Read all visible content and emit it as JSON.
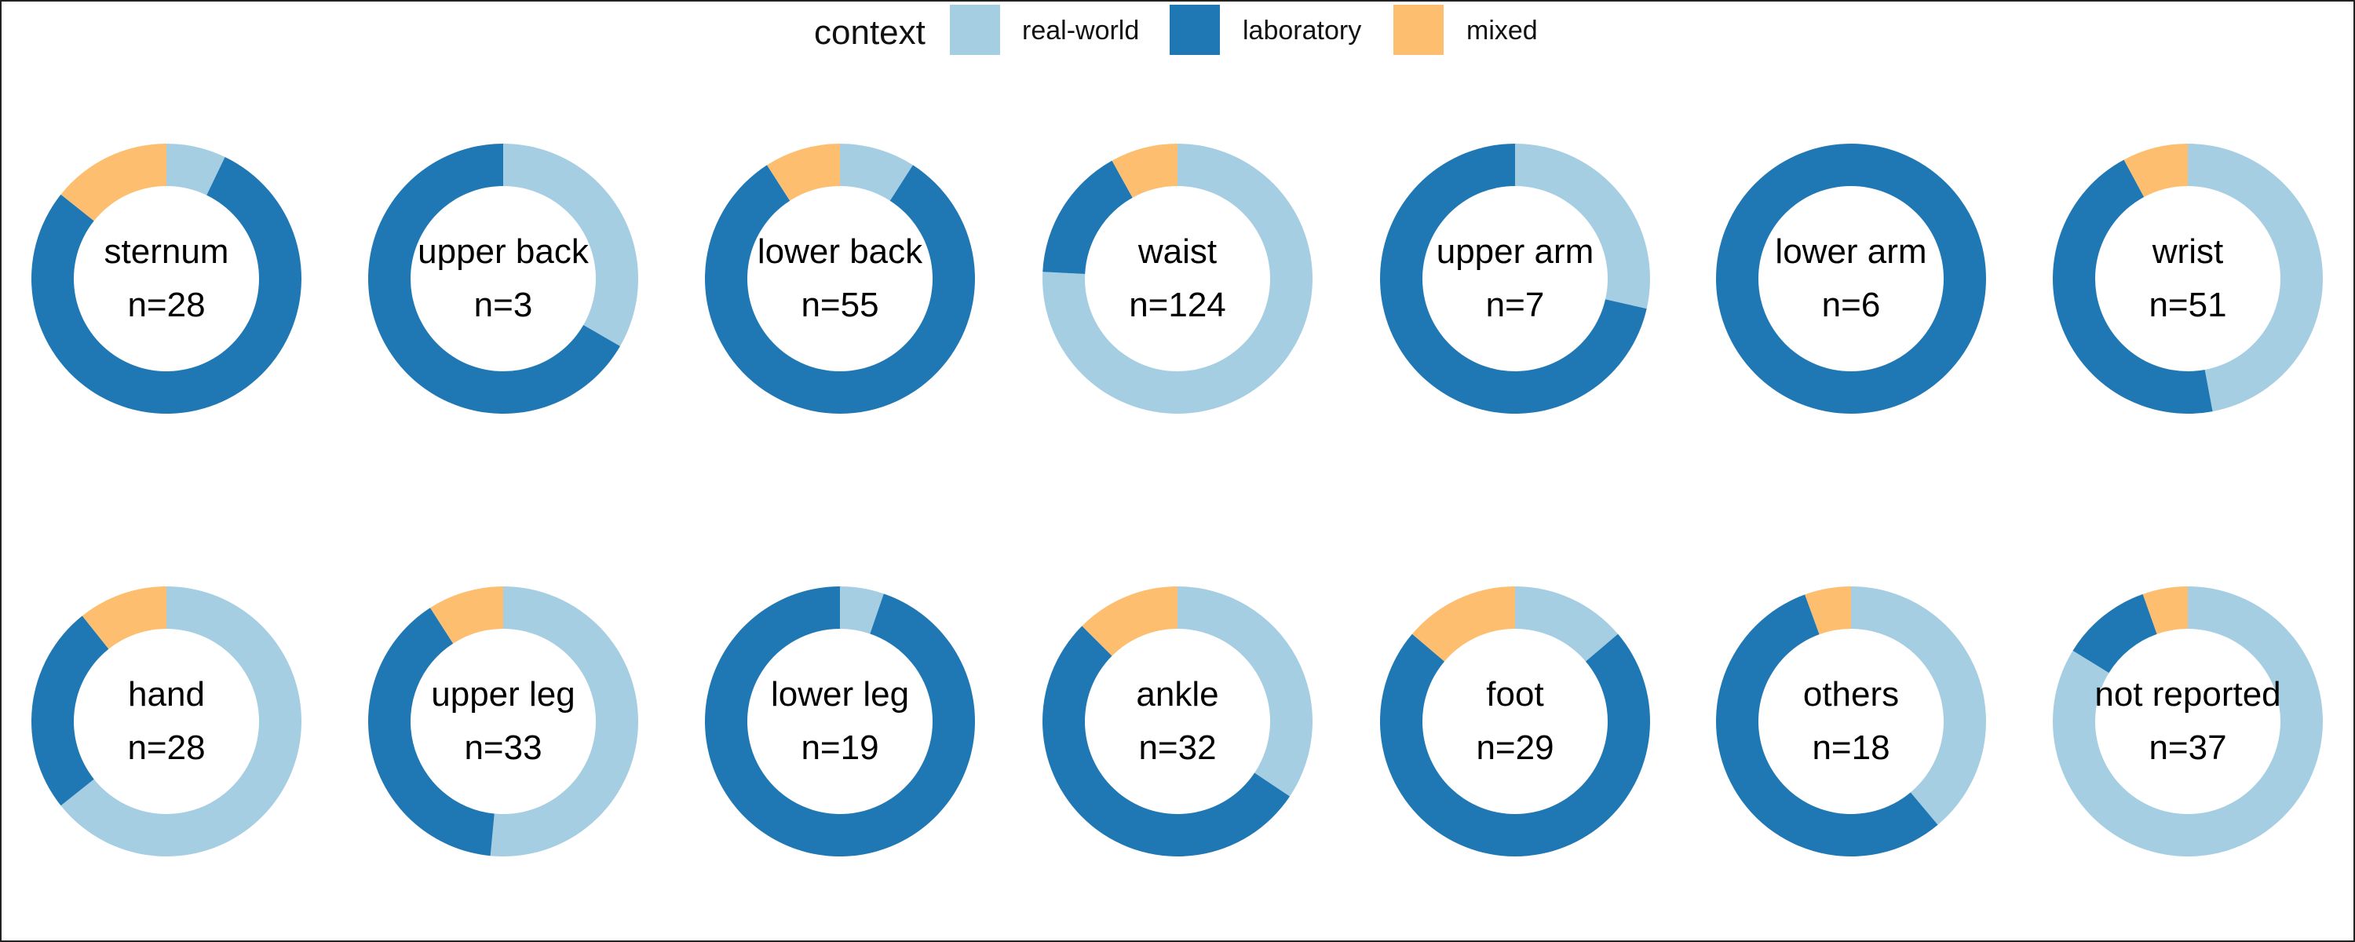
{
  "chart_data": {
    "type": "pie",
    "variant": "donut",
    "title": "",
    "legend": {
      "title": "context",
      "placement": "top",
      "entries": [
        {
          "name": "real-world",
          "color": "#a6cee3"
        },
        {
          "name": "laboratory",
          "color": "#1f78b4"
        },
        {
          "name": "mixed",
          "color": "#fdbf6f"
        }
      ]
    },
    "series_order": [
      "real-world",
      "laboratory",
      "mixed"
    ],
    "panels": [
      {
        "label": "sternum",
        "n_label": "n=28",
        "values": {
          "real-world": 2,
          "laboratory": 22,
          "mixed": 4
        }
      },
      {
        "label": "upper back",
        "n_label": "n=3",
        "values": {
          "real-world": 1,
          "laboratory": 2,
          "mixed": 0
        }
      },
      {
        "label": "lower back",
        "n_label": "n=55",
        "values": {
          "real-world": 5,
          "laboratory": 45,
          "mixed": 5
        }
      },
      {
        "label": "waist",
        "n_label": "n=124",
        "values": {
          "real-world": 94,
          "laboratory": 20,
          "mixed": 10
        }
      },
      {
        "label": "upper arm",
        "n_label": "n=7",
        "values": {
          "real-world": 2,
          "laboratory": 5,
          "mixed": 0
        }
      },
      {
        "label": "lower arm",
        "n_label": "n=6",
        "values": {
          "real-world": 0,
          "laboratory": 6,
          "mixed": 0
        }
      },
      {
        "label": "wrist",
        "n_label": "n=51",
        "values": {
          "real-world": 24,
          "laboratory": 23,
          "mixed": 4
        }
      },
      {
        "label": "hand",
        "n_label": "n=28",
        "values": {
          "real-world": 18,
          "laboratory": 7,
          "mixed": 3
        }
      },
      {
        "label": "upper leg",
        "n_label": "n=33",
        "values": {
          "real-world": 17,
          "laboratory": 13,
          "mixed": 3
        }
      },
      {
        "label": "lower leg",
        "n_label": "n=19",
        "values": {
          "real-world": 1,
          "laboratory": 18,
          "mixed": 0
        }
      },
      {
        "label": "ankle",
        "n_label": "n=32",
        "values": {
          "real-world": 11,
          "laboratory": 17,
          "mixed": 4
        }
      },
      {
        "label": "foot",
        "n_label": "n=29",
        "values": {
          "real-world": 4,
          "laboratory": 21,
          "mixed": 4
        }
      },
      {
        "label": "others",
        "n_label": "n=18",
        "values": {
          "real-world": 7,
          "laboratory": 10,
          "mixed": 1
        }
      },
      {
        "label": "not reported",
        "n_label": "n=37",
        "values": {
          "real-world": 31,
          "laboratory": 4,
          "mixed": 2
        }
      }
    ]
  }
}
